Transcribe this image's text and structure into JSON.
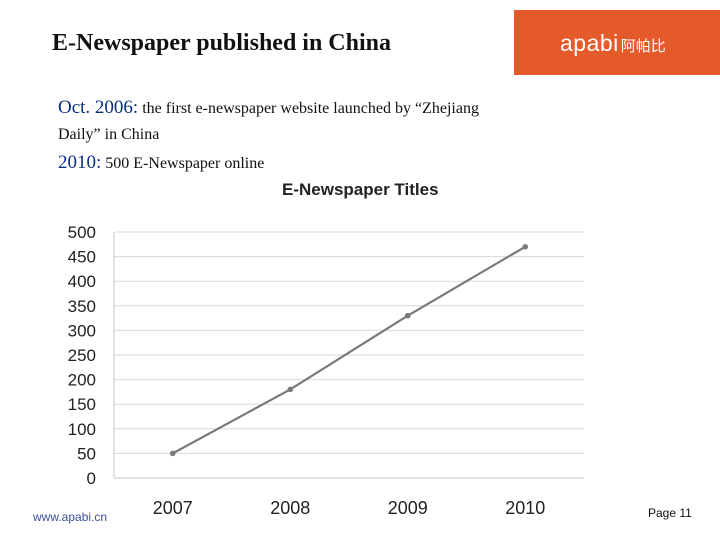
{
  "header": {
    "title": "E-Newspaper published in China",
    "logo_latin": "apabi",
    "logo_cjk": "阿帕比",
    "bar_color": "#e55a2b"
  },
  "body_text": {
    "line1_emphasis": "Oct. 2006:",
    "line1_rest": "the first e-newspaper website launched by “Zhejiang",
    "line2": "Daily” in China",
    "line3_emphasis": "2010:",
    "line3_rest": "500 E-Newspaper online"
  },
  "chart_data": {
    "type": "line",
    "title": "E-Newspaper Titles",
    "categories": [
      "2007",
      "2008",
      "2009",
      "2010"
    ],
    "series": [
      {
        "values": [
          50,
          180,
          330,
          470
        ]
      }
    ],
    "y_ticks": [
      "0",
      "50",
      "100",
      "150",
      "200",
      "250",
      "300",
      "350",
      "400",
      "450",
      "500"
    ],
    "ylim": [
      0,
      500
    ],
    "grid": true,
    "line_color": "#7a7a7a"
  },
  "footer": {
    "url": "www.apabi.cn",
    "page_label": "Page 11"
  }
}
